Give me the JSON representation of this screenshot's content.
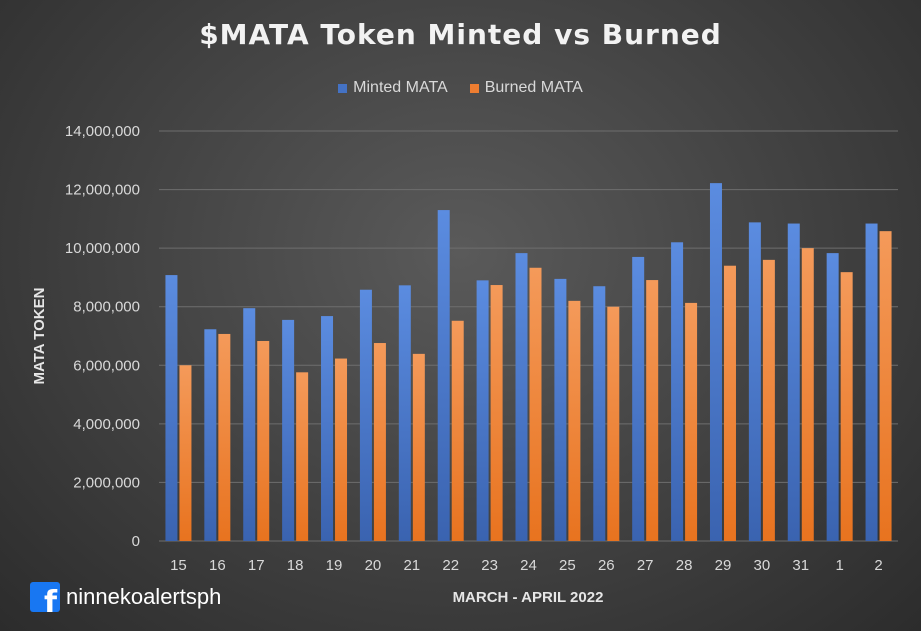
{
  "chart_data": {
    "type": "bar",
    "title": "$MATA Token Minted vs Burned",
    "xlabel": "MARCH - APRIL 2022",
    "ylabel": "MATA TOKEN",
    "ylim": [
      0,
      14000000
    ],
    "yticks": [
      0,
      2000000,
      4000000,
      6000000,
      8000000,
      10000000,
      12000000,
      14000000
    ],
    "ytick_labels": [
      "0",
      "2,000,000",
      "4,000,000",
      "6,000,000",
      "8,000,000",
      "10,000,000",
      "12,000,000",
      "14,000,000"
    ],
    "grid": true,
    "legend_position": "top-center",
    "categories": [
      "15",
      "16",
      "17",
      "18",
      "19",
      "20",
      "21",
      "22",
      "23",
      "24",
      "25",
      "26",
      "27",
      "28",
      "29",
      "30",
      "31",
      "1",
      "2"
    ],
    "series": [
      {
        "name": "Minted MATA",
        "color": "#4472c4",
        "values": [
          9080000,
          7230000,
          7950000,
          7550000,
          7680000,
          8580000,
          8730000,
          11300000,
          8900000,
          9830000,
          8950000,
          8700000,
          9700000,
          10200000,
          12220000,
          10880000,
          10840000,
          9830000,
          10840000
        ]
      },
      {
        "name": "Burned MATA",
        "color": "#ed7d31",
        "values": [
          6000000,
          7070000,
          6830000,
          5760000,
          6230000,
          6760000,
          6390000,
          7520000,
          8740000,
          9330000,
          8200000,
          8000000,
          8910000,
          8130000,
          9400000,
          9600000,
          10000000,
          9180000,
          10580000
        ]
      }
    ]
  },
  "credit": {
    "icon": "facebook-icon",
    "handle": "ninnekoalertsph"
  }
}
